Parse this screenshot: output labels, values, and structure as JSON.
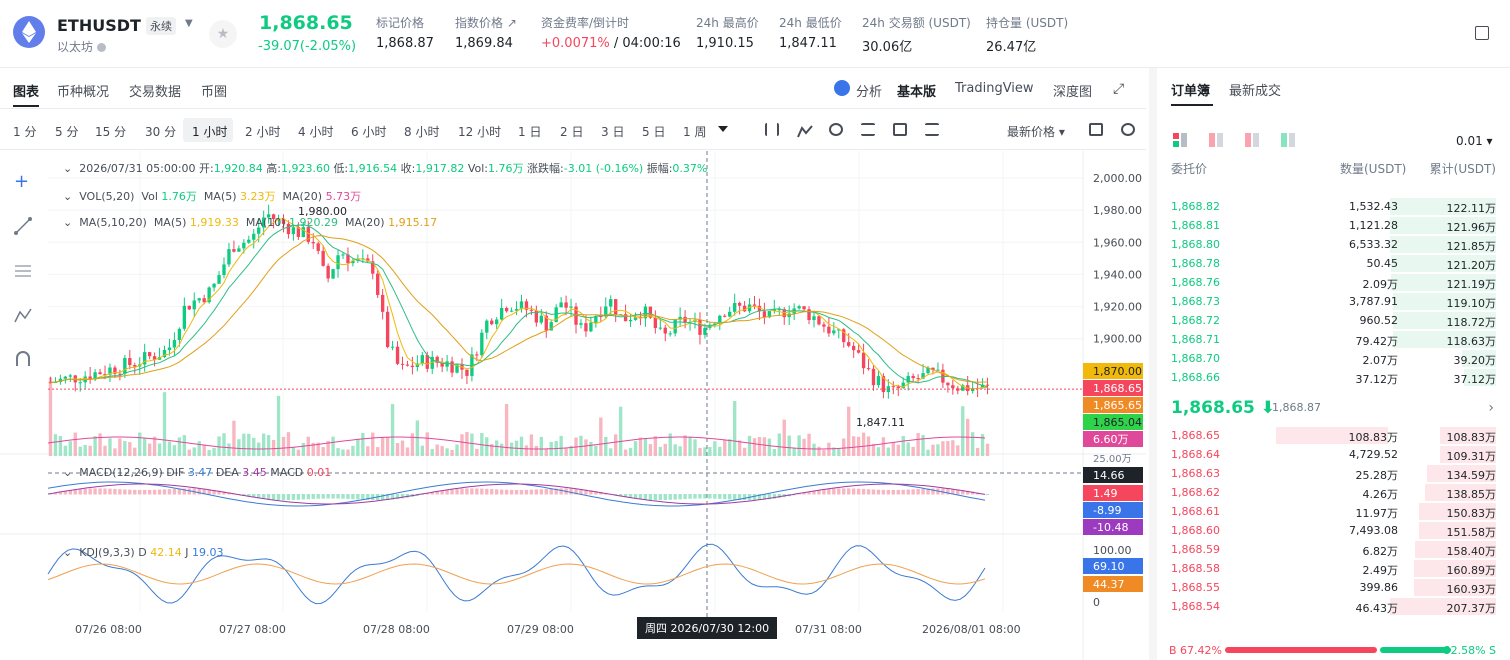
{
  "header": {
    "symbol": "ETHUSDT",
    "contract_type": "永续",
    "name": "以太坊",
    "last_price": "1,868.65",
    "change": "-39.07(-2.05%)",
    "stats": [
      {
        "label": "标记价格",
        "value": "1,868.87"
      },
      {
        "label": "指数价格 ↗",
        "value": "1,869.84"
      },
      {
        "label": "资金费率/倒计时",
        "value": "+0.0071%",
        "value2": "/ 04:00:16"
      },
      {
        "label": "24h 最高价",
        "value": "1,910.15"
      },
      {
        "label": "24h 最低价",
        "value": "1,847.11"
      },
      {
        "label": "24h 交易额 (USDT)",
        "value": "30.06亿"
      },
      {
        "label": "持仓量 (USDT)",
        "value": "26.47亿"
      }
    ]
  },
  "tabs": {
    "items": [
      "图表",
      "币种概况",
      "交易数据",
      "币圈"
    ],
    "analysis": "分析",
    "basic": "基本版",
    "tradingview": "TradingView",
    "depth": "深度图"
  },
  "intervals": {
    "items": [
      "1 分",
      "5 分",
      "15 分",
      "30 分",
      "1 小时",
      "2 小时",
      "4 小时",
      "6 小时",
      "8 小时",
      "12 小时",
      "1 日",
      "2 日",
      "3 日",
      "5 日",
      "1 周"
    ],
    "price_type": "最新价格 ▾"
  },
  "legend": {
    "ohlc_date": "2026/07/31 05:00:00",
    "open_l": "开:",
    "open": "1,920.84",
    "high_l": "高:",
    "high": "1,923.60",
    "low_l": "低:",
    "low": "1,916.54",
    "close_l": "收:",
    "close": "1,917.82",
    "vol_l": "Vol:",
    "vol": "1.76万",
    "chg_l": "涨跌幅:",
    "chg": "-3.01 (-0.16%)",
    "amp_l": "振幅:",
    "amp": "0.37%",
    "vol_line": "VOL(5,20)",
    "vol_v_l": "Vol",
    "vol_v": "1.76万",
    "vol_ma5_l": "MA(5)",
    "vol_ma5": "3.23万",
    "vol_ma20_l": "MA(20)",
    "vol_ma20": "5.73万",
    "ma_line": "MA(5,10,20)",
    "ma5_l": "MA(5)",
    "ma5": "1,919.33",
    "ma10_l": "MA(10)",
    "ma10": "1,920.29",
    "ma20_l": "MA(20)",
    "ma20": "1,915.17",
    "macd_line": "MACD(12,26,9)",
    "dif_l": "DIF",
    "dif": "3.47",
    "dea_l": "DEA",
    "dea": "3.45",
    "macd_l": "MACD",
    "macd": "0.01",
    "kdj_line": "KDJ(9,3,3)",
    "d_l": "D",
    "d": "42.14",
    "j_l": "J",
    "j": "19.03"
  },
  "price_axis": [
    "2,000.00",
    "1,980.00",
    "1,960.00",
    "1,940.00",
    "1,920.00",
    "1,900.00"
  ],
  "badges": {
    "p1": "1,870.00",
    "p2": "1,868.65",
    "p3": "1,865.65",
    "p4": "1,865.04",
    "vol": "6.60万",
    "vol2": "25.00万",
    "macd1": "14.66",
    "macd2": "1.49",
    "macd3": "-8.99",
    "macd4": "-10.48",
    "kdj1": "100.00",
    "kdj2": "69.10",
    "kdj3": "44.37",
    "kdj0": "0"
  },
  "annotations": {
    "high": "1,980.00",
    "low": "1,847.11"
  },
  "time_axis": [
    "07/26 08:00",
    "07/27 08:00",
    "07/28 08:00",
    "07/29 08:00",
    "07/31 08:00",
    "2026/08/01 08:00"
  ],
  "crosshair_time": "周四 2026/07/30 12:00",
  "orderbook": {
    "tabs": [
      "订单簿",
      "最新成交"
    ],
    "precision": "0.01",
    "headers": [
      "委托价",
      "数量(USDT)",
      "累计(USDT)"
    ],
    "bids_top": [
      [
        "1,868.82",
        "1,532.43",
        "122.11万"
      ],
      [
        "1,868.81",
        "1,121.28",
        "121.96万"
      ],
      [
        "1,868.80",
        "6,533.32",
        "121.85万"
      ],
      [
        "1,868.78",
        "50.45",
        "121.20万"
      ],
      [
        "1,868.76",
        "2.09万",
        "121.19万"
      ],
      [
        "1,868.73",
        "3,787.91",
        "119.10万"
      ],
      [
        "1,868.72",
        "960.52",
        "118.72万"
      ],
      [
        "1,868.71",
        "79.42万",
        "118.63万"
      ],
      [
        "1,868.70",
        "2.07万",
        "39.20万"
      ],
      [
        "1,868.66",
        "37.12万",
        "37.12万"
      ]
    ],
    "mid_price": "1,868.65",
    "mid_ref": "1,868.87",
    "asks": [
      [
        "1,868.65",
        "108.83万",
        "108.83万"
      ],
      [
        "1,868.64",
        "4,729.52",
        "109.31万"
      ],
      [
        "1,868.63",
        "25.28万",
        "134.59万"
      ],
      [
        "1,868.62",
        "4.26万",
        "138.85万"
      ],
      [
        "1,868.61",
        "11.97万",
        "150.83万"
      ],
      [
        "1,868.60",
        "7,493.08",
        "151.58万"
      ],
      [
        "1,868.59",
        "6.82万",
        "158.40万"
      ],
      [
        "1,868.58",
        "2.49万",
        "160.89万"
      ],
      [
        "1,868.55",
        "399.86",
        "160.93万"
      ],
      [
        "1,868.54",
        "46.43万",
        "207.37万"
      ]
    ],
    "buy_ratio": "B 67.42%",
    "sell_ratio": "32.58% S",
    "buy_pct": 67.42
  },
  "colors": {
    "up": "#0ecb81",
    "down": "#f6465d",
    "ma5": "#f0b90b",
    "ma10": "#2ebd85",
    "ma20": "#e0a017",
    "dif": "#3a7bd5",
    "dea": "#a33aa0"
  }
}
